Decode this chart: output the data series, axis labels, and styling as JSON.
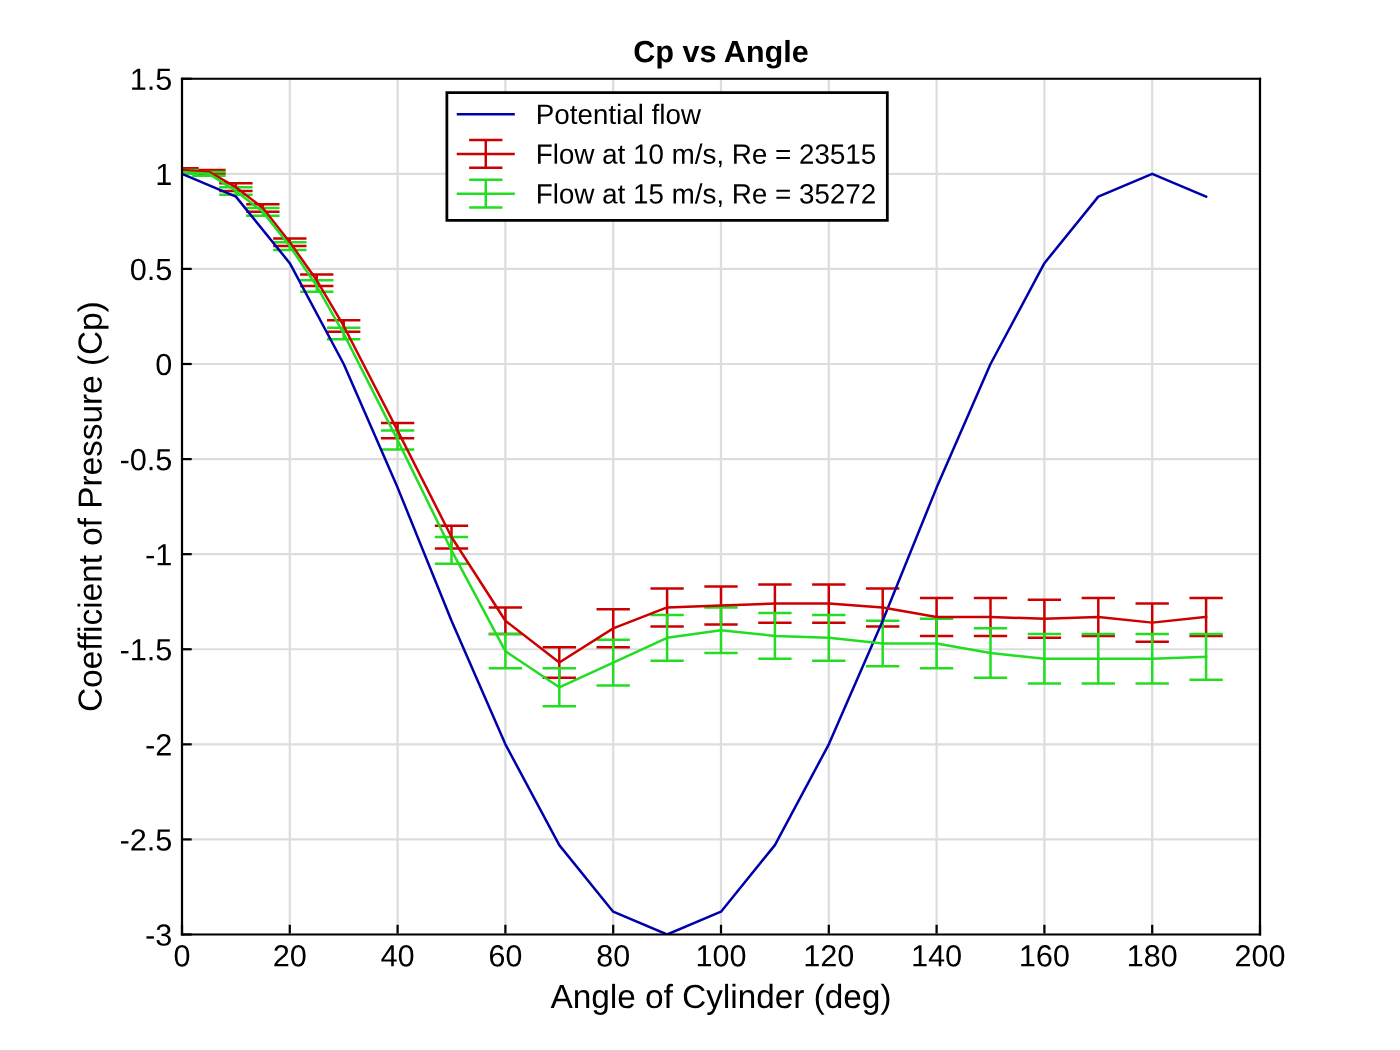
{
  "chart_data": {
    "type": "line",
    "title": "Cp vs Angle",
    "xlabel": "Angle of Cylinder (deg)",
    "ylabel": "Coefficient of Pressure (Cp)",
    "xlim": [
      0,
      200
    ],
    "xticks": [
      0,
      20,
      40,
      60,
      80,
      100,
      120,
      140,
      160,
      180,
      200
    ],
    "ylim": [
      -3,
      1.5
    ],
    "yticks": [
      -3,
      -2.5,
      -2,
      -1.5,
      -1,
      -0.5,
      0,
      0.5,
      1,
      1.5
    ],
    "grid": true,
    "legend": "top",
    "marker": "none",
    "line_style": "solid",
    "series": [
      {
        "name": "Potential flow",
        "color": "#0000aa",
        "x": [
          0,
          10,
          20,
          30,
          40,
          50,
          60,
          70,
          80,
          90,
          100,
          110,
          120,
          130,
          140,
          150,
          160,
          170,
          180,
          190
        ],
        "values": [
          1,
          0.88,
          0.53,
          0,
          -0.65,
          -1.35,
          -2,
          -2.53,
          -2.88,
          -3,
          -2.88,
          -2.53,
          -2,
          -1.35,
          -0.65,
          0,
          0.53,
          0.88,
          1,
          0.88
        ]
      },
      {
        "name": "Flow at 10 m/s, Re = 23515",
        "color": "#cc0000",
        "x": [
          0,
          5,
          10,
          15,
          20,
          25,
          30,
          40,
          50,
          60,
          70,
          80,
          90,
          100,
          110,
          120,
          130,
          140,
          150,
          160,
          170,
          180,
          190
        ],
        "values": [
          1.02,
          1.01,
          0.93,
          0.82,
          0.64,
          0.44,
          0.2,
          -0.35,
          -0.91,
          -1.35,
          -1.57,
          -1.39,
          -1.28,
          -1.27,
          -1.26,
          -1.26,
          -1.28,
          -1.33,
          -1.33,
          -1.34,
          -1.33,
          -1.36,
          -1.33
        ],
        "errors": [
          0.01,
          0.01,
          0.02,
          0.02,
          0.02,
          0.03,
          0.03,
          0.04,
          0.06,
          0.07,
          0.08,
          0.1,
          0.1,
          0.1,
          0.1,
          0.1,
          0.1,
          0.1,
          0.1,
          0.1,
          0.1,
          0.1,
          0.1
        ]
      },
      {
        "name": "Flow at 15 m/s, Re = 35272",
        "color": "#22dd22",
        "x": [
          0,
          5,
          10,
          15,
          20,
          25,
          30,
          40,
          50,
          60,
          70,
          80,
          90,
          100,
          110,
          120,
          130,
          140,
          150,
          160,
          170,
          180,
          190
        ],
        "values": [
          1.01,
          1.0,
          0.91,
          0.8,
          0.62,
          0.41,
          0.16,
          -0.4,
          -0.98,
          -1.51,
          -1.7,
          -1.57,
          -1.44,
          -1.4,
          -1.43,
          -1.44,
          -1.47,
          -1.47,
          -1.52,
          -1.55,
          -1.55,
          -1.55,
          -1.54
        ],
        "errors": [
          0.01,
          0.01,
          0.02,
          0.02,
          0.02,
          0.03,
          0.03,
          0.05,
          0.07,
          0.09,
          0.1,
          0.12,
          0.12,
          0.12,
          0.12,
          0.12,
          0.12,
          0.13,
          0.13,
          0.13,
          0.13,
          0.13,
          0.12
        ]
      }
    ]
  }
}
